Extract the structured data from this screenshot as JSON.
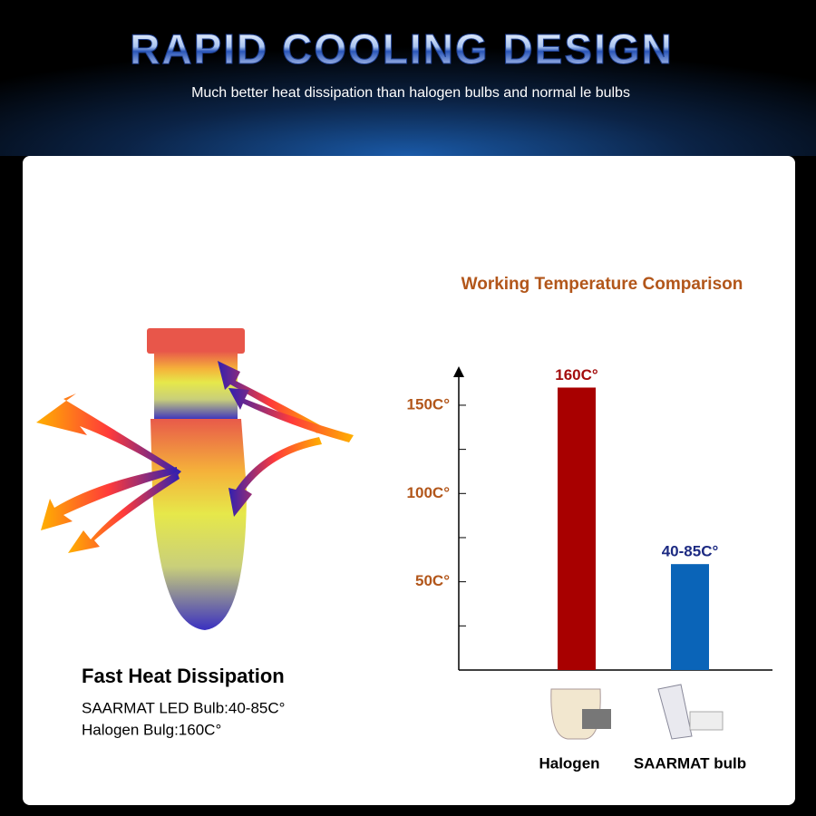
{
  "header": {
    "title": "RAPID COOLING DESIGN",
    "subtitle": "Much better heat dissipation than halogen bulbs and normal le bulbs"
  },
  "feature": {
    "title": "Fast Heat Dissipation",
    "lines": [
      "SAARMAT LED Bulb:40-85C°",
      "Halogen Bulg:160C°"
    ]
  },
  "chart_data": {
    "type": "bar",
    "title": "Working Temperature Comparison",
    "categories": [
      "Halogen",
      "SAARMAT bulb"
    ],
    "values": [
      160,
      60
    ],
    "value_labels": [
      "160C°",
      "40-85C°"
    ],
    "colors": [
      "#a80000",
      "#0a64b8"
    ],
    "label_colors": [
      "#a30d0d",
      "#1c2a82"
    ],
    "ylim": [
      0,
      170
    ],
    "yticks": [
      {
        "value": 50,
        "label": "50C°"
      },
      {
        "value": 100,
        "label": "100C°"
      },
      {
        "value": 150,
        "label": "150C°"
      }
    ],
    "minor_yticks": [
      25,
      75,
      125
    ]
  }
}
